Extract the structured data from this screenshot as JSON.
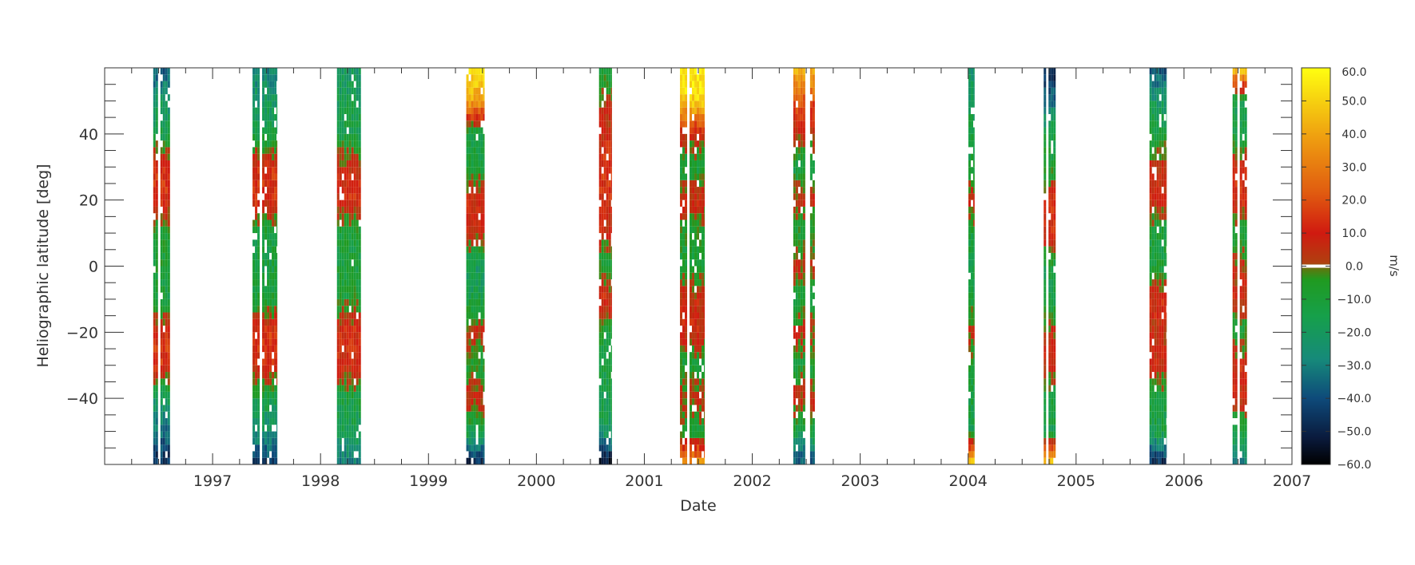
{
  "chart_data": {
    "type": "heatmap",
    "title": "",
    "xlabel": "Date",
    "ylabel": "Heliographic latitude [deg]",
    "xlim": [
      1996.0,
      2007.0
    ],
    "ylim": [
      -60,
      60
    ],
    "x_ticks": [
      "1997",
      "1998",
      "1999",
      "2000",
      "2001",
      "2002",
      "2003",
      "2004",
      "2005",
      "2006",
      "2007"
    ],
    "y_ticks": [
      "40",
      "20",
      "0",
      "−20",
      "−40"
    ],
    "colorbar": {
      "unit": "m/s",
      "range": [
        -60,
        60
      ],
      "tick_labels": [
        "60.0",
        "50.0",
        "40.0",
        "30.0",
        "20.0",
        "10.0",
        "0.0",
        "−10.0",
        "−20.0",
        "−30.0",
        "−40.0",
        "−50.0",
        "−60.0"
      ],
      "stops": [
        {
          "v": -60,
          "c": "#000000"
        },
        {
          "v": -52,
          "c": "#0a1a3c"
        },
        {
          "v": -40,
          "c": "#0e4a7a"
        },
        {
          "v": -28,
          "c": "#168a7a"
        },
        {
          "v": -15,
          "c": "#16a04a"
        },
        {
          "v": -4,
          "c": "#209a20"
        },
        {
          "v": -1,
          "c": "#5a7a10"
        },
        {
          "v": 1,
          "c": "#b04010"
        },
        {
          "v": 10,
          "c": "#d01a10"
        },
        {
          "v": 22,
          "c": "#e05a10"
        },
        {
          "v": 38,
          "c": "#ee9a10"
        },
        {
          "v": 50,
          "c": "#f6d010"
        },
        {
          "v": 60,
          "c": "#ffff10"
        }
      ]
    },
    "observation_bands": [
      {
        "start": 1996.45,
        "end": 1996.62,
        "profile": [
          [
            -60,
            -48
          ],
          [
            -48,
            -30
          ],
          [
            -40,
            -20
          ],
          [
            -30,
            15
          ],
          [
            -20,
            12
          ],
          [
            -10,
            -12
          ],
          [
            0,
            -10
          ],
          [
            10,
            -8
          ],
          [
            20,
            12
          ],
          [
            30,
            14
          ],
          [
            40,
            -15
          ],
          [
            50,
            -22
          ],
          [
            60,
            -38
          ]
        ]
      },
      {
        "start": 1997.37,
        "end": 1997.6,
        "profile": [
          [
            -60,
            -45
          ],
          [
            -50,
            -25
          ],
          [
            -40,
            -14
          ],
          [
            -30,
            12
          ],
          [
            -20,
            14
          ],
          [
            -10,
            -10
          ],
          [
            0,
            -12
          ],
          [
            10,
            -12
          ],
          [
            20,
            14
          ],
          [
            30,
            12
          ],
          [
            40,
            -14
          ],
          [
            50,
            -20
          ],
          [
            60,
            -30
          ]
        ]
      },
      {
        "start": 1998.13,
        "end": 1998.38,
        "profile": [
          [
            -60,
            -30
          ],
          [
            -50,
            -18
          ],
          [
            -40,
            -12
          ],
          [
            -30,
            10
          ],
          [
            -20,
            12
          ],
          [
            -10,
            -8
          ],
          [
            0,
            -12
          ],
          [
            10,
            -10
          ],
          [
            20,
            12
          ],
          [
            30,
            8
          ],
          [
            40,
            -14
          ],
          [
            50,
            -16
          ],
          [
            60,
            -22
          ]
        ]
      },
      {
        "start": 1999.35,
        "end": 1999.52,
        "profile": [
          [
            -60,
            -50
          ],
          [
            -50,
            -14
          ],
          [
            -40,
            8
          ],
          [
            -30,
            -10
          ],
          [
            -20,
            6
          ],
          [
            -10,
            -14
          ],
          [
            0,
            -20
          ],
          [
            10,
            8
          ],
          [
            20,
            10
          ],
          [
            30,
            -10
          ],
          [
            40,
            -14
          ],
          [
            50,
            40
          ],
          [
            60,
            55
          ]
        ]
      },
      {
        "start": 2000.58,
        "end": 2000.7,
        "profile": [
          [
            -60,
            -58
          ],
          [
            -50,
            -20
          ],
          [
            -40,
            -14
          ],
          [
            -30,
            -12
          ],
          [
            -20,
            -10
          ],
          [
            -10,
            12
          ],
          [
            0,
            -10
          ],
          [
            10,
            8
          ],
          [
            20,
            10
          ],
          [
            30,
            14
          ],
          [
            40,
            8
          ],
          [
            50,
            4
          ],
          [
            60,
            -12
          ]
        ]
      },
      {
        "start": 2001.33,
        "end": 2001.56,
        "profile": [
          [
            -60,
            40
          ],
          [
            -50,
            -10
          ],
          [
            -40,
            6
          ],
          [
            -30,
            -12
          ],
          [
            -20,
            10
          ],
          [
            -10,
            8
          ],
          [
            0,
            -10
          ],
          [
            10,
            -8
          ],
          [
            20,
            10
          ],
          [
            30,
            -12
          ],
          [
            40,
            8
          ],
          [
            50,
            50
          ],
          [
            60,
            58
          ]
        ]
      },
      {
        "start": 2002.38,
        "end": 2002.58,
        "profile": [
          [
            -60,
            -40
          ],
          [
            -50,
            -14
          ],
          [
            -40,
            8
          ],
          [
            -30,
            -10
          ],
          [
            -20,
            6
          ],
          [
            -10,
            -12
          ],
          [
            0,
            6
          ],
          [
            10,
            -10
          ],
          [
            20,
            8
          ],
          [
            30,
            -14
          ],
          [
            40,
            6
          ],
          [
            50,
            20
          ],
          [
            60,
            45
          ]
        ]
      },
      {
        "start": 2003.98,
        "end": 2004.06,
        "profile": [
          [
            -60,
            55
          ],
          [
            -50,
            -14
          ],
          [
            -40,
            -12
          ],
          [
            -30,
            -10
          ],
          [
            -20,
            6
          ],
          [
            -10,
            -12
          ],
          [
            0,
            -14
          ],
          [
            10,
            -10
          ],
          [
            20,
            8
          ],
          [
            30,
            -12
          ],
          [
            40,
            -10
          ],
          [
            50,
            -20
          ],
          [
            60,
            -22
          ]
        ]
      },
      {
        "start": 2004.7,
        "end": 2004.84,
        "profile": [
          [
            -60,
            52
          ],
          [
            -50,
            -14
          ],
          [
            -40,
            -12
          ],
          [
            -30,
            8
          ],
          [
            -20,
            6
          ],
          [
            -10,
            -14
          ],
          [
            0,
            -12
          ],
          [
            10,
            10
          ],
          [
            20,
            12
          ],
          [
            30,
            -10
          ],
          [
            40,
            -12
          ],
          [
            50,
            -35
          ],
          [
            60,
            -50
          ]
        ]
      },
      {
        "start": 2005.68,
        "end": 2005.84,
        "profile": [
          [
            -60,
            -50
          ],
          [
            -50,
            -14
          ],
          [
            -40,
            -12
          ],
          [
            -30,
            8
          ],
          [
            -20,
            6
          ],
          [
            -10,
            12
          ],
          [
            0,
            -10
          ],
          [
            10,
            -12
          ],
          [
            20,
            10
          ],
          [
            30,
            8
          ],
          [
            40,
            -12
          ],
          [
            50,
            -20
          ],
          [
            60,
            -40
          ]
        ]
      },
      {
        "start": 2006.45,
        "end": 2006.6,
        "profile": [
          [
            -60,
            -30
          ],
          [
            -50,
            -14
          ],
          [
            -40,
            8
          ],
          [
            -30,
            10
          ],
          [
            -20,
            -10
          ],
          [
            -10,
            8
          ],
          [
            0,
            6
          ],
          [
            10,
            -10
          ],
          [
            20,
            12
          ],
          [
            30,
            10
          ],
          [
            40,
            -12
          ],
          [
            50,
            -15
          ],
          [
            60,
            50
          ]
        ]
      }
    ]
  }
}
